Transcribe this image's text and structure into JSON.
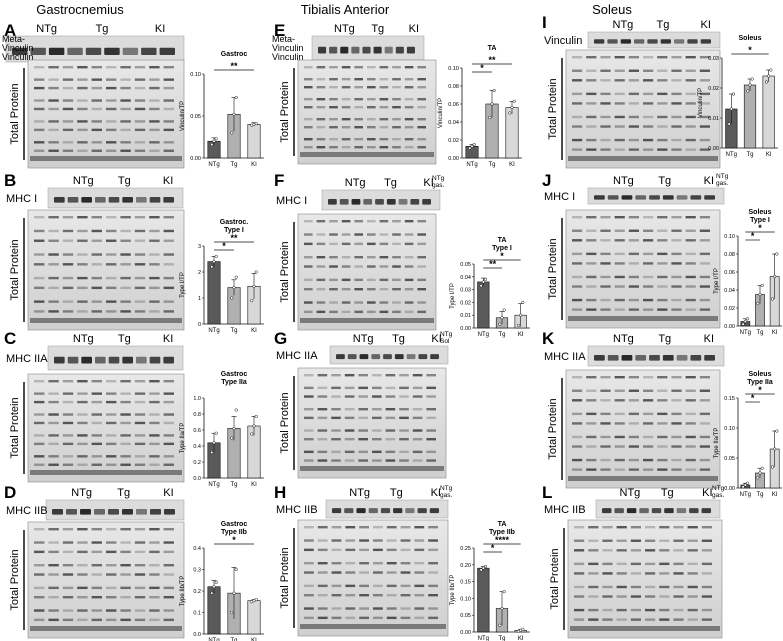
{
  "figure": {
    "columns": [
      {
        "id": "gastro",
        "title": "Gastrocnemius"
      },
      {
        "id": "ta",
        "title": "Tibialis Anterior"
      },
      {
        "id": "soleus",
        "title": "Soleus"
      }
    ],
    "groups": [
      "NTg",
      "Tg",
      "KI"
    ],
    "total_protein_label": "Total Protein",
    "panels": [
      {
        "letter": "A",
        "lane_labels": [
          "NTg",
          "Tg",
          "KI"
        ],
        "extra_lane_label": "",
        "blot_labels": [
          "Meta-",
          "Vinculin",
          "Vinculin"
        ],
        "chart_title": [
          "Gastroc"
        ],
        "ylabel": "Vinculin/TP",
        "sig": [
          "**"
        ],
        "chart_data": {
          "type": "bar",
          "categories": [
            "NTg",
            "Tg",
            "KI"
          ],
          "values": [
            0.02,
            0.052,
            0.04
          ],
          "errors": [
            0.004,
            0.02,
            0.002
          ],
          "points": [
            [
              0.016,
              0.02,
              0.023
            ],
            [
              0.03,
              0.052,
              0.072
            ],
            [
              0.039,
              0.04,
              0.041
            ]
          ],
          "ylim": [
            0,
            0.1
          ],
          "yticks": [
            "0.00",
            "0.05",
            "0.10"
          ],
          "xlabel": "",
          "ylabel": "Vinculin/TP",
          "title": "Gastroc",
          "colors": [
            "#5a5a5a",
            "#b0b0b0",
            "#d8d8d8"
          ],
          "significance": [
            {
              "from": 0,
              "to": 2,
              "label": "**"
            }
          ]
        }
      },
      {
        "letter": "B",
        "lane_labels": [
          "NTg",
          "Tg",
          "KI"
        ],
        "extra_lane_label": "",
        "blot_labels": [
          "MHC I"
        ],
        "chart_title": [
          "Gastroc.",
          "Type I"
        ],
        "ylabel": "Type I/TP",
        "sig": [
          "**",
          "*"
        ],
        "chart_data": {
          "type": "bar",
          "categories": [
            "NTg",
            "Tg",
            "KI"
          ],
          "values": [
            2.4,
            1.4,
            1.45
          ],
          "errors": [
            0.2,
            0.3,
            0.5
          ],
          "points": [
            [
              2.2,
              2.4,
              2.6
            ],
            [
              1.0,
              1.4,
              1.8
            ],
            [
              0.9,
              1.45,
              2.0
            ]
          ],
          "ylim": [
            0,
            3
          ],
          "yticks": [
            "0",
            "1",
            "2",
            "3"
          ],
          "xlabel": "",
          "ylabel": "Type I/TP",
          "title": "Gastroc. Type I",
          "colors": [
            "#5a5a5a",
            "#b0b0b0",
            "#d8d8d8"
          ],
          "significance": [
            {
              "from": 0,
              "to": 2,
              "label": "**"
            },
            {
              "from": 0,
              "to": 1,
              "label": "*"
            }
          ]
        }
      },
      {
        "letter": "C",
        "lane_labels": [
          "NTg",
          "Tg",
          "KI"
        ],
        "extra_lane_label": "",
        "blot_labels": [
          "MHC IIA"
        ],
        "chart_title": [
          "Gastroc",
          "Type IIa"
        ],
        "ylabel": "Type IIa/TP",
        "sig": [],
        "chart_data": {
          "type": "bar",
          "categories": [
            "NTg",
            "Tg",
            "KI"
          ],
          "values": [
            0.44,
            0.62,
            0.65
          ],
          "errors": [
            0.12,
            0.15,
            0.12
          ],
          "points": [
            [
              0.32,
              0.44,
              0.56
            ],
            [
              0.5,
              0.62,
              0.85
            ],
            [
              0.55,
              0.65,
              0.77
            ]
          ],
          "ylim": [
            0,
            1
          ],
          "yticks": [
            "0.0",
            "0.2",
            "0.4",
            "0.6",
            "0.8",
            "1.0"
          ],
          "xlabel": "",
          "ylabel": "Type IIa/TP",
          "title": "Gastroc Type IIa",
          "colors": [
            "#5a5a5a",
            "#b0b0b0",
            "#d8d8d8"
          ],
          "significance": []
        }
      },
      {
        "letter": "D",
        "lane_labels": [
          "NTg",
          "Tg",
          "KI"
        ],
        "extra_lane_label": "",
        "blot_labels": [
          "MHC IIB"
        ],
        "chart_title": [
          "Gastroc",
          "Type IIb"
        ],
        "ylabel": "Type IIb/TP",
        "sig": [
          "*"
        ],
        "chart_data": {
          "type": "bar",
          "categories": [
            "NTg",
            "Tg",
            "KI"
          ],
          "values": [
            0.22,
            0.19,
            0.155
          ],
          "errors": [
            0.03,
            0.12,
            0.005
          ],
          "points": [
            [
              0.19,
              0.22,
              0.24
            ],
            [
              0.1,
              0.19,
              0.3
            ],
            [
              0.15,
              0.155,
              0.16
            ]
          ],
          "ylim": [
            0,
            0.4
          ],
          "yticks": [
            "0.0",
            "0.1",
            "0.2",
            "0.3",
            "0.4"
          ],
          "xlabel": "",
          "ylabel": "Type IIb/TP",
          "title": "Gastroc Type IIb",
          "colors": [
            "#5a5a5a",
            "#b0b0b0",
            "#d8d8d8"
          ],
          "significance": [
            {
              "from": 0,
              "to": 2,
              "label": "*"
            }
          ]
        }
      },
      {
        "letter": "E",
        "lane_labels": [
          "NTg",
          "Tg",
          "KI"
        ],
        "extra_lane_label": "",
        "blot_labels": [
          "Meta-",
          "Vinculin",
          "Vinculin"
        ],
        "chart_title": [
          "TA"
        ],
        "ylabel": "Vinculin/TP",
        "sig": [
          "**",
          "*"
        ],
        "chart_data": {
          "type": "bar",
          "categories": [
            "NTg",
            "Tg",
            "KI"
          ],
          "values": [
            0.013,
            0.06,
            0.056
          ],
          "errors": [
            0.002,
            0.015,
            0.007
          ],
          "points": [
            [
              0.011,
              0.013,
              0.015
            ],
            [
              0.045,
              0.06,
              0.075
            ],
            [
              0.05,
              0.056,
              0.063
            ]
          ],
          "ylim": [
            0,
            0.1
          ],
          "yticks": [
            "0.00",
            "0.02",
            "0.04",
            "0.06",
            "0.08",
            "0.10"
          ],
          "xlabel": "",
          "ylabel": "Vinculin/TP",
          "title": "TA",
          "colors": [
            "#5a5a5a",
            "#b0b0b0",
            "#d8d8d8"
          ],
          "significance": [
            {
              "from": 0,
              "to": 2,
              "label": "**"
            },
            {
              "from": 0,
              "to": 1,
              "label": "*"
            }
          ]
        }
      },
      {
        "letter": "F",
        "lane_labels": [
          "NTg",
          "Tg",
          "KI"
        ],
        "extra_lane_label": "NTg gas.",
        "blot_labels": [
          "MHC I"
        ],
        "chart_title": [
          "TA",
          "Type I"
        ],
        "ylabel": "Type I/TP",
        "sig": [
          "*",
          "**"
        ],
        "chart_data": {
          "type": "bar",
          "categories": [
            "NTg",
            "Tg",
            "KI"
          ],
          "values": [
            0.036,
            0.008,
            0.01
          ],
          "errors": [
            0.003,
            0.005,
            0.009
          ],
          "points": [
            [
              0.033,
              0.036,
              0.038
            ],
            [
              0.003,
              0.008,
              0.014
            ],
            [
              0.002,
              0.01,
              0.02
            ]
          ],
          "ylim": [
            0,
            0.05
          ],
          "yticks": [
            "0.00",
            "0.01",
            "0.02",
            "0.03",
            "0.04",
            "0.05"
          ],
          "xlabel": "",
          "ylabel": "Type I/TP",
          "title": "TA Type I",
          "colors": [
            "#5a5a5a",
            "#b0b0b0",
            "#d8d8d8"
          ],
          "significance": [
            {
              "from": 0,
              "to": 2,
              "label": "*"
            },
            {
              "from": 0,
              "to": 1,
              "label": "**"
            }
          ]
        }
      },
      {
        "letter": "G",
        "lane_labels": [
          "NTg",
          "Tg",
          "KI"
        ],
        "extra_lane_label": "NTg Sol",
        "blot_labels": [
          "MHC IIA"
        ],
        "chart_title": [],
        "ylabel": "",
        "sig": [],
        "chart_data": null
      },
      {
        "letter": "H",
        "lane_labels": [
          "NTg",
          "Tg",
          "KI"
        ],
        "extra_lane_label": "NTg gas.",
        "blot_labels": [
          "MHC IIB"
        ],
        "chart_title": [
          "TA",
          "Type IIb"
        ],
        "ylabel": "Type IIb/TP",
        "sig": [
          "****",
          "*"
        ],
        "chart_data": {
          "type": "bar",
          "categories": [
            "NTg",
            "Tg",
            "KI"
          ],
          "values": [
            0.19,
            0.07,
            0.005
          ],
          "errors": [
            0.005,
            0.05,
            0.003
          ],
          "points": [
            [
              0.185,
              0.19,
              0.195
            ],
            [
              0.02,
              0.07,
              0.12
            ],
            [
              0.002,
              0.005,
              0.008
            ]
          ],
          "ylim": [
            0,
            0.25
          ],
          "yticks": [
            "0.00",
            "0.05",
            "0.10",
            "0.15",
            "0.20",
            "0.25"
          ],
          "xlabel": "",
          "ylabel": "Type IIb/TP",
          "title": "TA Type IIb",
          "colors": [
            "#5a5a5a",
            "#b0b0b0",
            "#d8d8d8"
          ],
          "significance": [
            {
              "from": 0,
              "to": 2,
              "label": "****"
            },
            {
              "from": 0,
              "to": 1,
              "label": "*"
            }
          ]
        }
      },
      {
        "letter": "I",
        "lane_labels": [
          "NTg",
          "Tg",
          "KI"
        ],
        "extra_lane_label": "",
        "blot_labels": [
          "Vinculin"
        ],
        "chart_title": [
          "Soleus"
        ],
        "ylabel": "Vinculin/TP",
        "sig": [
          "*"
        ],
        "chart_data": {
          "type": "bar",
          "categories": [
            "NTg",
            "Tg",
            "KI"
          ],
          "values": [
            0.013,
            0.021,
            0.024
          ],
          "errors": [
            0.005,
            0.002,
            0.002
          ],
          "points": [
            [
              0.008,
              0.013,
              0.018
            ],
            [
              0.019,
              0.021,
              0.023
            ],
            [
              0.022,
              0.024,
              0.026
            ]
          ],
          "ylim": [
            0,
            0.03
          ],
          "yticks": [
            "0.00",
            "0.01",
            "0.02",
            "0.03"
          ],
          "xlabel": "",
          "ylabel": "Vinculin/TP",
          "title": "Soleus",
          "colors": [
            "#5a5a5a",
            "#b0b0b0",
            "#d8d8d8"
          ],
          "significance": [
            {
              "from": 0,
              "to": 2,
              "label": "*"
            }
          ]
        }
      },
      {
        "letter": "J",
        "lane_labels": [
          "NTg",
          "Tg",
          "KI"
        ],
        "extra_lane_label": "NTg gas.",
        "blot_labels": [
          "MHC I"
        ],
        "chart_title": [
          "Soleus",
          "Type I"
        ],
        "ylabel": "Type I/TP",
        "sig": [
          "*",
          "*"
        ],
        "chart_data": {
          "type": "bar",
          "categories": [
            "NTg",
            "Tg",
            "KI"
          ],
          "values": [
            0.005,
            0.035,
            0.055
          ],
          "errors": [
            0.003,
            0.01,
            0.025
          ],
          "points": [
            [
              0.002,
              0.005,
              0.008
            ],
            [
              0.025,
              0.035,
              0.045
            ],
            [
              0.03,
              0.055,
              0.08
            ]
          ],
          "ylim": [
            0,
            0.1
          ],
          "yticks": [
            "0.00",
            "0.02",
            "0.04",
            "0.06",
            "0.08",
            "0.10"
          ],
          "xlabel": "",
          "ylabel": "Type I/TP",
          "title": "Soleus Type I",
          "colors": [
            "#5a5a5a",
            "#b0b0b0",
            "#d8d8d8"
          ],
          "significance": [
            {
              "from": 0,
              "to": 2,
              "label": "*"
            },
            {
              "from": 0,
              "to": 1,
              "label": "*"
            }
          ]
        }
      },
      {
        "letter": "K",
        "lane_labels": [
          "NTg",
          "Tg",
          "KI"
        ],
        "extra_lane_label": "",
        "blot_labels": [
          "MHC IIA"
        ],
        "chart_title": [
          "Soleus",
          "Type IIa"
        ],
        "ylabel": "Type IIa/TP",
        "sig": [
          "*",
          "*"
        ],
        "chart_data": {
          "type": "bar",
          "categories": [
            "NTg",
            "Tg",
            "KI"
          ],
          "values": [
            0.005,
            0.025,
            0.065
          ],
          "errors": [
            0.003,
            0.008,
            0.03
          ],
          "points": [
            [
              0.002,
              0.005,
              0.008
            ],
            [
              0.017,
              0.025,
              0.033
            ],
            [
              0.035,
              0.065,
              0.095
            ]
          ],
          "ylim": [
            0,
            0.15
          ],
          "yticks": [
            "0.00",
            "0.05",
            "0.10",
            "0.15"
          ],
          "xlabel": "",
          "ylabel": "Type IIa/TP",
          "title": "Soleus Type IIa",
          "colors": [
            "#5a5a5a",
            "#b0b0b0",
            "#d8d8d8"
          ],
          "significance": [
            {
              "from": 0,
              "to": 2,
              "label": "*"
            },
            {
              "from": 0,
              "to": 1,
              "label": "*"
            }
          ]
        }
      },
      {
        "letter": "L",
        "lane_labels": [
          "NTg",
          "Tg",
          "KI"
        ],
        "extra_lane_label": "NTg gas.",
        "blot_labels": [
          "MHC IIB"
        ],
        "chart_title": [],
        "ylabel": "",
        "sig": [],
        "chart_data": null
      }
    ]
  }
}
